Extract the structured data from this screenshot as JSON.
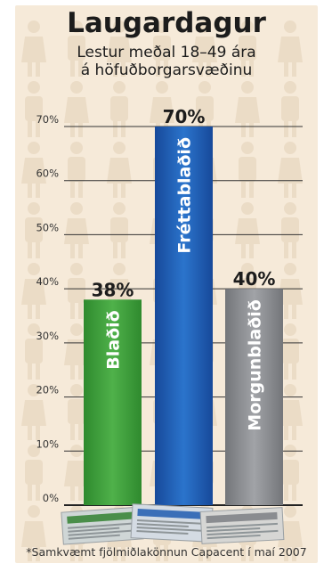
{
  "chart_data": {
    "type": "bar",
    "title": "Laugardagur",
    "subtitle_lines": [
      "Lestur meðal 18–49 ára",
      "á höfuðborgarsvæðinu"
    ],
    "categories": [
      "Blaðið",
      "Fréttablaðið",
      "Morgunblaðið"
    ],
    "values": [
      38,
      70,
      40
    ],
    "value_labels": [
      "38%",
      "70%",
      "40%"
    ],
    "y_ticks": [
      0,
      10,
      20,
      30,
      40,
      50,
      60,
      70
    ],
    "y_tick_labels": [
      "0%",
      "10%",
      "20%",
      "30%",
      "40%",
      "50%",
      "60%",
      "70%"
    ],
    "ylim": [
      0,
      70
    ],
    "grid": true,
    "colors": [
      "#3c9b3a",
      "#1f5fb4",
      "#8a8c90"
    ],
    "footnote": "*Samkvæmt fjölmiðlakönnun Capacent í maí 2007"
  },
  "colors": {
    "background": "#f6ead9",
    "silhouette": "#ebdcc6",
    "text": "#1c1c1c"
  }
}
